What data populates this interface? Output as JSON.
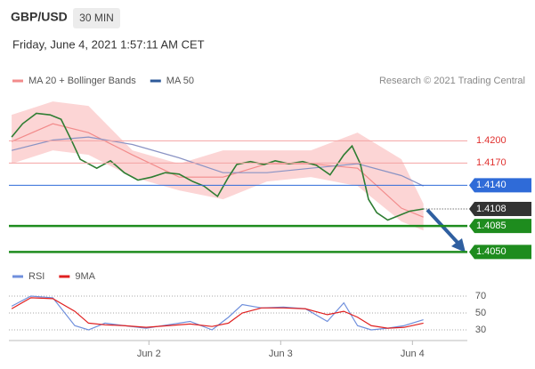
{
  "chart_data": [
    {
      "type": "line",
      "title": "GBP/USD",
      "timeframe": "30 MIN",
      "subtitle": "Friday, June 4, 2021 1:57:11 AM CET",
      "credit": "Research © 2021 Trading Central",
      "xlim": [
        0,
        167
      ],
      "ylim": [
        1.4036,
        1.4258
      ],
      "series": [
        {
          "name": "MA 20 + Bollinger Bands",
          "color": "#f28b8b",
          "band_color": "#fcd5d5",
          "x": [
            1,
            16,
            29,
            45,
            62,
            78,
            94,
            110,
            127,
            143,
            151
          ],
          "values": [
            1.4199,
            1.4223,
            1.4211,
            1.4181,
            1.4151,
            1.4151,
            1.4169,
            1.4169,
            1.4163,
            1.4109,
            1.4097
          ],
          "upper": [
            1.4235,
            1.4253,
            1.4247,
            1.4187,
            1.4169,
            1.4187,
            1.4187,
            1.4187,
            1.4211,
            1.4175,
            1.4115
          ],
          "lower": [
            1.4169,
            1.4187,
            1.4181,
            1.4151,
            1.4133,
            1.4121,
            1.4145,
            1.4151,
            1.4139,
            1.4091,
            1.4079
          ]
        },
        {
          "name": "MA 50",
          "color": "#2d5a9a",
          "line_color": "#8a93c4",
          "x": [
            1,
            16,
            29,
            45,
            62,
            78,
            94,
            110,
            127,
            143,
            151
          ],
          "values": [
            1.4187,
            1.4201,
            1.4205,
            1.4195,
            1.4177,
            1.4157,
            1.4157,
            1.4163,
            1.4169,
            1.4153,
            1.4139
          ]
        },
        {
          "color": "#2e7d32",
          "x": [
            1,
            5,
            10,
            15,
            19,
            23,
            26,
            29,
            32,
            37,
            42,
            47,
            52,
            57,
            62,
            67,
            71,
            76,
            80,
            83,
            88,
            93,
            97,
            102,
            107,
            112,
            117,
            122,
            125,
            128,
            131,
            134,
            138,
            142,
            146,
            151
          ],
          "values": [
            1.4205,
            1.4223,
            1.4237,
            1.4235,
            1.4229,
            1.4199,
            1.4175,
            1.4169,
            1.4163,
            1.4173,
            1.4157,
            1.4147,
            1.4151,
            1.4157,
            1.4155,
            1.4145,
            1.4139,
            1.4125,
            1.4151,
            1.4168,
            1.4172,
            1.4168,
            1.4173,
            1.4169,
            1.4172,
            1.4167,
            1.4154,
            1.4181,
            1.4193,
            1.4169,
            1.4121,
            1.4103,
            1.4093,
            1.4099,
            1.4105,
            1.4108
          ]
        }
      ],
      "levels": [
        {
          "value": 1.42,
          "label": "1.4200",
          "color": "#f4a3a3",
          "text_color": "#e0312f",
          "style": "text"
        },
        {
          "value": 1.417,
          "label": "1.4170",
          "color": "#f4a3a3",
          "text_color": "#e0312f",
          "style": "text"
        },
        {
          "value": 1.414,
          "label": "1.4140",
          "color": "#2f6bd8",
          "text_color": "#ffffff",
          "style": "box"
        },
        {
          "value": 1.4108,
          "label": "1.4108",
          "color": "#333333",
          "text_color": "#ffffff",
          "style": "box",
          "dotted": true
        },
        {
          "value": 1.4085,
          "label": "1.4085",
          "color": "#1e8c1e",
          "text_color": "#ffffff",
          "style": "box"
        },
        {
          "value": 1.405,
          "label": "1.4050",
          "color": "#1e8c1e",
          "text_color": "#ffffff",
          "style": "box"
        }
      ]
    },
    {
      "type": "line",
      "xlim": [
        0,
        167
      ],
      "ylim": [
        20,
        80
      ],
      "yticks": [
        30,
        50,
        70
      ],
      "xticks": [
        {
          "value": 51,
          "label": "Jun 2"
        },
        {
          "value": 99,
          "label": "Jun 3"
        },
        {
          "value": 147,
          "label": "Jun 4"
        }
      ],
      "series": [
        {
          "name": "RSI",
          "color": "#6f8fdc",
          "x": [
            1,
            8,
            16,
            24,
            29,
            35,
            42,
            50,
            58,
            66,
            74,
            80,
            85,
            92,
            100,
            108,
            116,
            122,
            127,
            132,
            138,
            144,
            151
          ],
          "values": [
            58,
            70,
            68,
            35,
            30,
            38,
            35,
            32,
            36,
            40,
            30,
            45,
            60,
            56,
            57,
            55,
            40,
            62,
            35,
            30,
            32,
            35,
            42
          ]
        },
        {
          "name": "9MA",
          "color": "#e02020",
          "x": [
            1,
            8,
            16,
            24,
            29,
            35,
            42,
            50,
            58,
            66,
            74,
            80,
            85,
            92,
            100,
            108,
            116,
            122,
            127,
            132,
            138,
            144,
            151
          ],
          "values": [
            55,
            68,
            67,
            52,
            38,
            36,
            35,
            33,
            35,
            37,
            34,
            38,
            50,
            56,
            56,
            55,
            48,
            52,
            45,
            35,
            32,
            33,
            38
          ]
        }
      ]
    }
  ]
}
